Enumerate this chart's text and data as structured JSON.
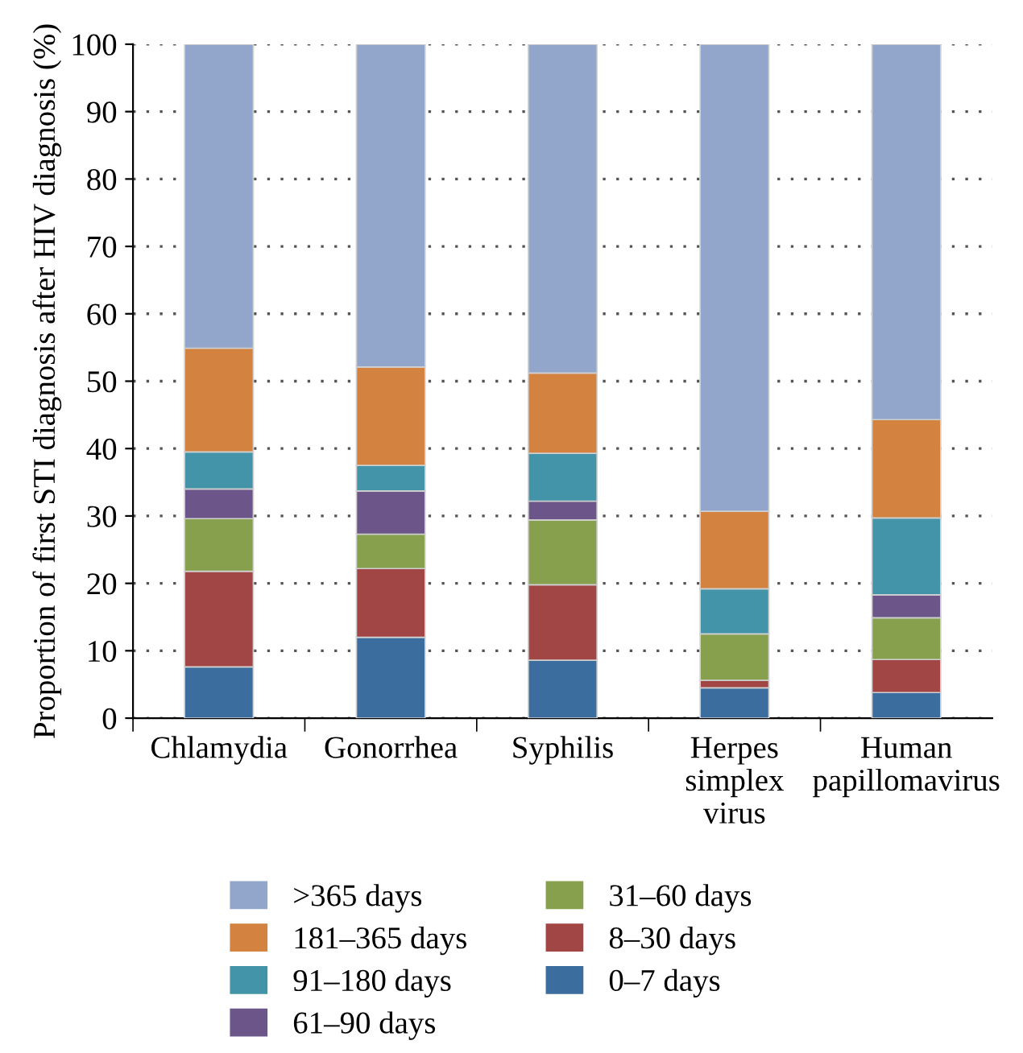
{
  "chart_data": {
    "type": "bar",
    "stacked": true,
    "ylabel": "Proportion of first STI diagnosis after HIV diagnosis (%)",
    "categories": [
      "Chlamydia",
      "Gonorrhea",
      "Syphilis",
      "Herpes\nsimplex\nvirus",
      "Human\npapillomavirus"
    ],
    "series": [
      {
        "name": "0–7 days",
        "color": "#3b6d9e",
        "values": [
          7.6,
          12.0,
          8.6,
          4.5,
          3.8
        ]
      },
      {
        "name": "8–30 days",
        "color": "#a24545",
        "values": [
          14.2,
          10.2,
          11.2,
          1.1,
          4.9
        ]
      },
      {
        "name": "31–60 days",
        "color": "#87a04e",
        "values": [
          7.8,
          5.1,
          9.6,
          6.9,
          6.2
        ]
      },
      {
        "name": "61–90 days",
        "color": "#6c5689",
        "values": [
          4.4,
          6.4,
          2.8,
          0,
          3.4
        ]
      },
      {
        "name": "91–180 days",
        "color": "#4394a8",
        "values": [
          5.5,
          3.8,
          7.1,
          6.7,
          11.4
        ]
      },
      {
        "name": "181–365 days",
        "color": "#d38240",
        "values": [
          15.4,
          14.6,
          11.9,
          11.5,
          14.6
        ]
      },
      {
        "name": ">365 days",
        "color": "#92a6cc",
        "values": [
          45.1,
          47.9,
          48.8,
          69.3,
          55.7
        ]
      }
    ],
    "ylim": [
      0,
      100
    ],
    "yticks": [
      0,
      10,
      20,
      30,
      40,
      50,
      60,
      70,
      80,
      90,
      100
    ],
    "grid": "y",
    "legend": "bottom"
  }
}
